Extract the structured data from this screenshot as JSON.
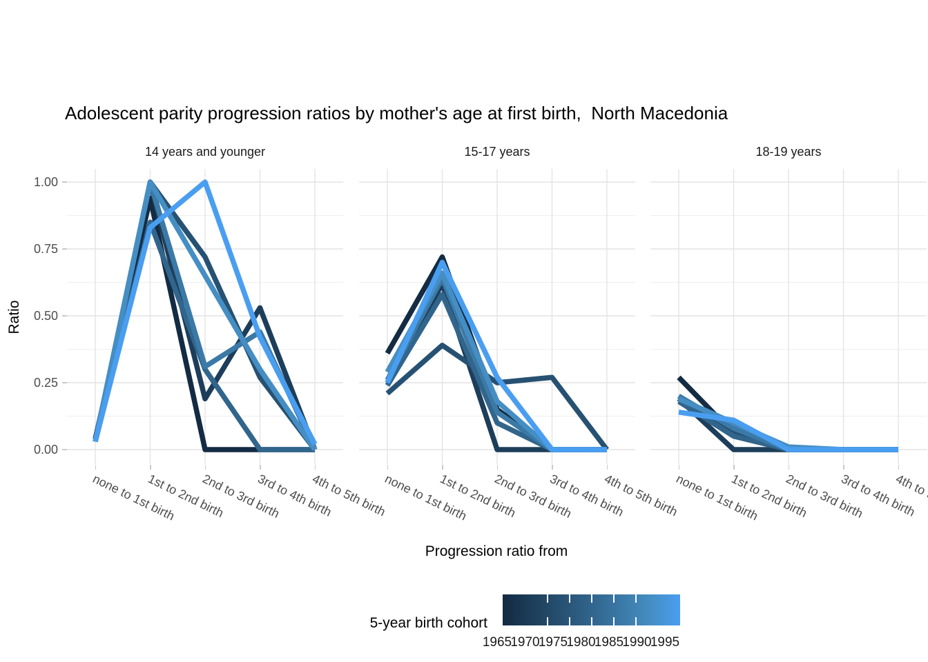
{
  "chart_data": {
    "type": "line",
    "title": "Adolescent parity progression ratios by mother's age at first birth,  North Macedonia",
    "xlabel": "Progression ratio from",
    "ylabel": "Ratio",
    "ylim": [
      0,
      1
    ],
    "grid": true,
    "legend_position": "bottom",
    "categories": [
      "none to 1st birth",
      "1st to 2nd birth",
      "2nd to 3rd birth",
      "3rd to 4th birth",
      "4th to 5th birth"
    ],
    "y_ticks": {
      "values": [
        0,
        0.25,
        0.5,
        0.75,
        1.0
      ],
      "labels": [
        "0.00",
        "0.25",
        "0.50",
        "0.75",
        "1.00"
      ]
    },
    "y_minor_ticks": [
      0.125,
      0.375,
      0.625,
      0.875
    ],
    "legend": {
      "title": "5-year birth cohort",
      "labels": [
        "1965",
        "1970",
        "1975",
        "1980",
        "1985",
        "1990",
        "1995"
      ]
    },
    "cohort_colors": {
      "1965": "#132B43",
      "1970": "#1D3E5A",
      "1975": "#275172",
      "1980": "#31658C",
      "1985": "#3B79A7",
      "1990": "#458EC3",
      "1995": "#4A9EF0"
    },
    "style": {
      "grid_major": "#e3e3e3",
      "grid_minor": "#efefef",
      "axis_tick": "#c9c9c9",
      "tick_text": "#4d4d4d",
      "line_width": 7.5
    },
    "facets": [
      {
        "label": "14 years and younger",
        "series": [
          {
            "name": "1965",
            "values": [
              0.04,
              0.94,
              0.0,
              0.0,
              0.0
            ]
          },
          {
            "name": "1970",
            "values": [
              0.03,
              1.0,
              0.19,
              0.53,
              0.0
            ]
          },
          {
            "name": "1975",
            "values": [
              0.03,
              1.0,
              0.72,
              0.27,
              0.0
            ]
          },
          {
            "name": "1980",
            "values": [
              0.03,
              0.85,
              0.3,
              0.0,
              0.0
            ]
          },
          {
            "name": "1985",
            "values": [
              0.03,
              1.0,
              0.31,
              0.44,
              0.0
            ]
          },
          {
            "name": "1990",
            "values": [
              0.03,
              1.0,
              0.65,
              0.3,
              0.0
            ]
          },
          {
            "name": "1995",
            "values": [
              0.03,
              0.83,
              1.0,
              0.42,
              0.02
            ]
          }
        ]
      },
      {
        "label": "15-17 years",
        "series": [
          {
            "name": "1965",
            "values": [
              0.36,
              0.72,
              0.15,
              0.0,
              0.0
            ]
          },
          {
            "name": "1970",
            "values": [
              0.25,
              0.62,
              0.0,
              0.0,
              0.0
            ]
          },
          {
            "name": "1975",
            "values": [
              0.21,
              0.39,
              0.25,
              0.27,
              0.0
            ]
          },
          {
            "name": "1980",
            "values": [
              0.24,
              0.58,
              0.1,
              0.0,
              0.0
            ]
          },
          {
            "name": "1985",
            "values": [
              0.26,
              0.64,
              0.14,
              0.0,
              0.0
            ]
          },
          {
            "name": "1990",
            "values": [
              0.29,
              0.66,
              0.18,
              0.0,
              0.0
            ]
          },
          {
            "name": "1995",
            "values": [
              0.25,
              0.7,
              0.27,
              0.0,
              0.0
            ]
          }
        ]
      },
      {
        "label": "18-19 years",
        "series": [
          {
            "name": "1965",
            "values": [
              0.27,
              0.06,
              0.0,
              0.0,
              0.0
            ]
          },
          {
            "name": "1970",
            "values": [
              0.19,
              0.0,
              0.0,
              0.0,
              0.0
            ]
          },
          {
            "name": "1975",
            "values": [
              0.2,
              0.07,
              0.0,
              0.0,
              0.0
            ]
          },
          {
            "name": "1980",
            "values": [
              0.18,
              0.05,
              0.0,
              0.0,
              0.0
            ]
          },
          {
            "name": "1985",
            "values": [
              0.2,
              0.08,
              0.0,
              0.0,
              0.0
            ]
          },
          {
            "name": "1990",
            "values": [
              0.19,
              0.1,
              0.01,
              0.0,
              0.0
            ]
          },
          {
            "name": "1995",
            "values": [
              0.14,
              0.11,
              0.0,
              0.0,
              0.0
            ]
          }
        ]
      }
    ]
  }
}
